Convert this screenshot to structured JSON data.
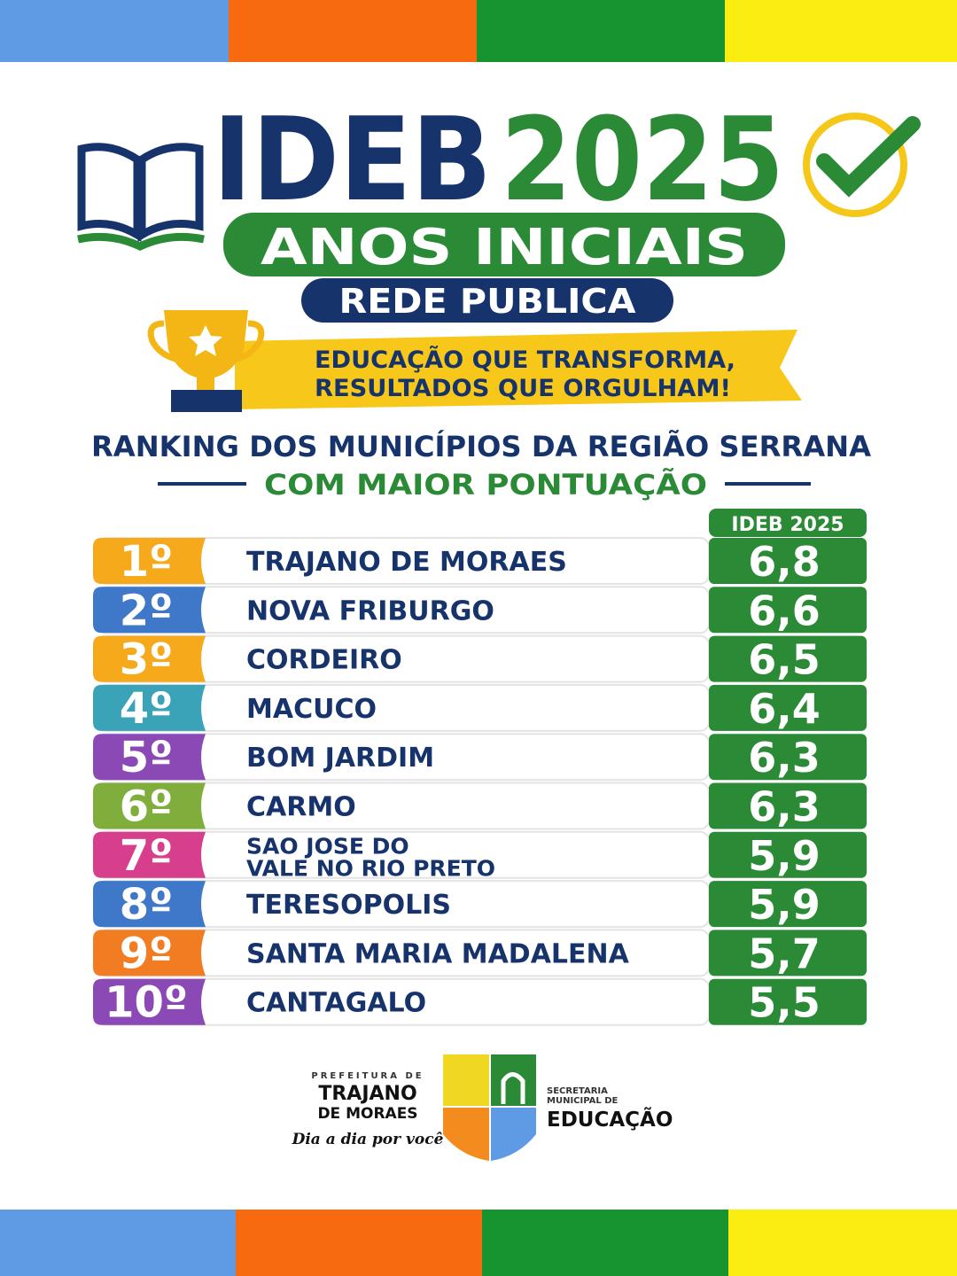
{
  "header": {
    "title": "IDEB",
    "year": "2025",
    "subtitle": "ANOS INICIAIS",
    "badge": "REDE PUBLICA",
    "slogan": [
      "EDUCAÇÃO QUE TRANSFORMA,",
      "RESULTADOS QUE ORGULHAM!"
    ]
  },
  "ranking": {
    "title": "RANKING DOS MUNICÍPIOS DA REGIÃO SERRANA",
    "subtitle": "COM MAIOR PONTUAÇÃO"
  },
  "table": {
    "column_header": "IDEB 2025",
    "rows": [
      {
        "rank": "1º",
        "name": [
          "TRAJANO DE MORAES"
        ],
        "score": "6,8"
      },
      {
        "rank": "2º",
        "name": [
          "NOVA FRIBURGO"
        ],
        "score": "6,6"
      },
      {
        "rank": "3º",
        "name": [
          "CORDEIRO"
        ],
        "score": "6,5"
      },
      {
        "rank": "4º",
        "name": [
          "MACUCO"
        ],
        "score": "6,4"
      },
      {
        "rank": "5º",
        "name": [
          "BOM JARDIM"
        ],
        "score": "6,3"
      },
      {
        "rank": "6º",
        "name": [
          "CARMO"
        ],
        "score": "6,3"
      },
      {
        "rank": "7º",
        "name": [
          "SAO JOSE DO",
          "VALE NO RIO  PRETO"
        ],
        "score": "5,9"
      },
      {
        "rank": "8º",
        "name": [
          "TERESOPOLIS"
        ],
        "score": "5,9"
      },
      {
        "rank": "9º",
        "name": [
          "SANTA MARIA MADALENA"
        ],
        "score": "5,7"
      },
      {
        "rank": "10º",
        "name": [
          "CANTAGALO"
        ],
        "score": "5,5"
      }
    ]
  },
  "footer": {
    "prefeitura": "PREFEITURA DE",
    "city": [
      "TRAJANO",
      "DE MORAES"
    ],
    "motto": "Dia a dia por você",
    "secretaria": [
      "SECRETARIA",
      "MUNICIPAL DE"
    ],
    "department": "EDUCAÇÃO"
  }
}
